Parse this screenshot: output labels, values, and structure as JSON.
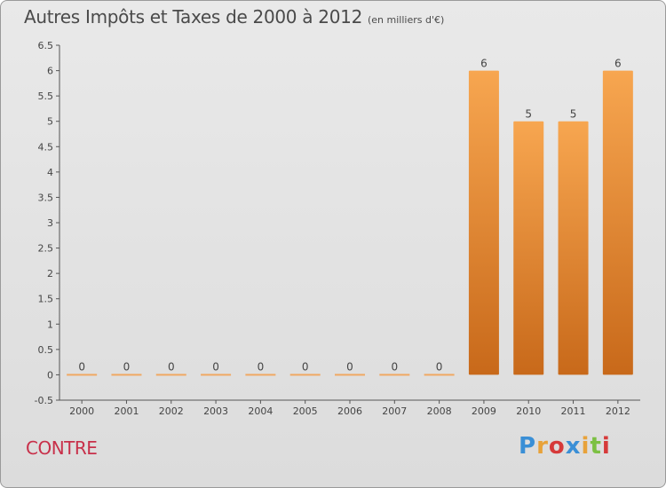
{
  "header": {
    "title": "Autres Impôts et Taxes de 2000 à 2012",
    "unit": "(en milliers d'€)"
  },
  "footer": {
    "commune": "CONTRE",
    "logo_letters": [
      "P",
      "r",
      "o",
      "x",
      "i",
      "t",
      "i"
    ],
    "logo_colors": [
      "#3a8fd6",
      "#e8a23a",
      "#d63a3a",
      "#3a8fd6",
      "#e8a23a",
      "#7cc043",
      "#d63a3a"
    ]
  },
  "chart_data": {
    "type": "bar",
    "title": "Autres Impôts et Taxes de 2000 à 2012",
    "subtitle": "(en milliers d'€)",
    "categories": [
      "2000",
      "2001",
      "2002",
      "2003",
      "2004",
      "2005",
      "2006",
      "2007",
      "2008",
      "2009",
      "2010",
      "2011",
      "2012"
    ],
    "values": [
      0,
      0,
      0,
      0,
      0,
      0,
      0,
      0,
      0,
      6,
      5,
      5,
      6
    ],
    "data_labels": [
      "0",
      "0",
      "0",
      "0",
      "0",
      "0",
      "0",
      "0",
      "0",
      "6",
      "5",
      "5",
      "6"
    ],
    "ylim": [
      -0.5,
      6.5
    ],
    "yticks": [
      -0.5,
      0,
      0.5,
      1,
      1.5,
      2,
      2.5,
      3,
      3.5,
      4,
      4.5,
      5,
      5.5,
      6,
      6.5
    ],
    "ytick_labels": [
      "-0.5",
      "0",
      "0.5",
      "1",
      "1.5",
      "2",
      "2.5",
      "3",
      "3.5",
      "4",
      "4.5",
      "5",
      "5.5",
      "6",
      "6.5"
    ],
    "grid": false,
    "legend": "none",
    "colors": {
      "bar_light": "#f7a650",
      "bar_dark": "#c8691a",
      "zero_bar": "#f0a862",
      "axis": "#555555"
    }
  }
}
